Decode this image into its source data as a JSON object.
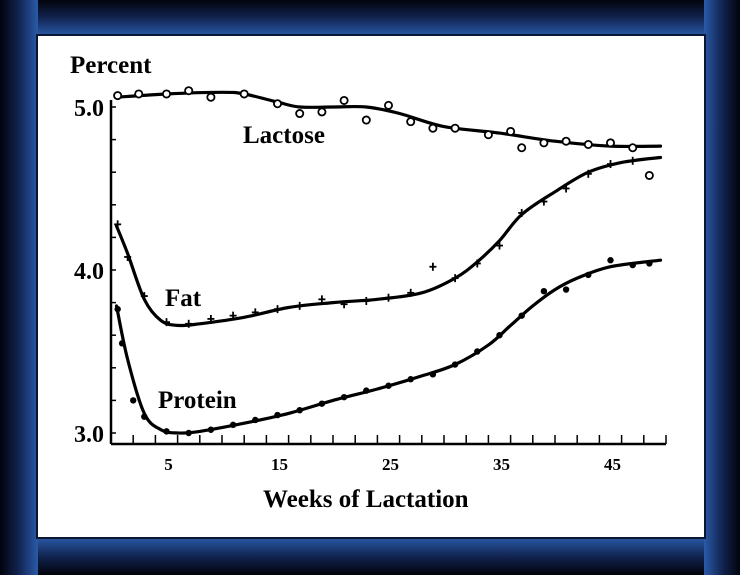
{
  "chart_data": {
    "type": "line",
    "title": "",
    "ylabel": "Percent",
    "xlabel": "Weeks of Lactation",
    "xlim": [
      0,
      50
    ],
    "ylim": [
      2.95,
      5.1
    ],
    "y_ticks": [
      "3.0",
      "4.0",
      "5.0"
    ],
    "x_ticks": [
      "5",
      "15",
      "25",
      "35",
      "45"
    ],
    "grid": false,
    "series": [
      {
        "name": "Lactose",
        "marker": "circle-open",
        "curve": [
          [
            0.5,
            5.06
          ],
          [
            5,
            5.08
          ],
          [
            10,
            5.09
          ],
          [
            12,
            5.08
          ],
          [
            15,
            5.03
          ],
          [
            17,
            5.0
          ],
          [
            20,
            5.0
          ],
          [
            23,
            5.0
          ],
          [
            26,
            4.96
          ],
          [
            30,
            4.88
          ],
          [
            35,
            4.84
          ],
          [
            40,
            4.79
          ],
          [
            45,
            4.76
          ],
          [
            49.5,
            4.76
          ]
        ],
        "points": [
          [
            0.6,
            5.07
          ],
          [
            2.5,
            5.08
          ],
          [
            5,
            5.08
          ],
          [
            7,
            5.1
          ],
          [
            9,
            5.06
          ],
          [
            12,
            5.08
          ],
          [
            15,
            5.02
          ],
          [
            17,
            4.96
          ],
          [
            19,
            4.97
          ],
          [
            21,
            5.04
          ],
          [
            23,
            4.92
          ],
          [
            25,
            5.01
          ],
          [
            27,
            4.91
          ],
          [
            29,
            4.87
          ],
          [
            31,
            4.87
          ],
          [
            34,
            4.83
          ],
          [
            36,
            4.85
          ],
          [
            37,
            4.75
          ],
          [
            39,
            4.78
          ],
          [
            41,
            4.79
          ],
          [
            43,
            4.77
          ],
          [
            45,
            4.78
          ],
          [
            47,
            4.75
          ],
          [
            48.5,
            4.58
          ]
        ]
      },
      {
        "name": "Fat",
        "marker": "plus",
        "curve": [
          [
            0.5,
            4.27
          ],
          [
            1.5,
            4.1
          ],
          [
            3,
            3.82
          ],
          [
            4.5,
            3.69
          ],
          [
            6,
            3.66
          ],
          [
            8,
            3.67
          ],
          [
            12,
            3.71
          ],
          [
            16,
            3.77
          ],
          [
            20,
            3.8
          ],
          [
            24,
            3.82
          ],
          [
            28,
            3.86
          ],
          [
            31,
            3.95
          ],
          [
            33,
            4.05
          ],
          [
            35,
            4.18
          ],
          [
            37,
            4.34
          ],
          [
            40,
            4.48
          ],
          [
            43,
            4.6
          ],
          [
            46,
            4.66
          ],
          [
            49.5,
            4.69
          ]
        ],
        "points": [
          [
            0.6,
            4.28
          ],
          [
            1.5,
            4.08
          ],
          [
            3,
            3.84
          ],
          [
            5,
            3.68
          ],
          [
            7,
            3.67
          ],
          [
            9,
            3.7
          ],
          [
            11,
            3.72
          ],
          [
            13,
            3.74
          ],
          [
            15,
            3.76
          ],
          [
            17,
            3.78
          ],
          [
            19,
            3.82
          ],
          [
            21,
            3.79
          ],
          [
            23,
            3.81
          ],
          [
            25,
            3.83
          ],
          [
            27,
            3.86
          ],
          [
            29,
            4.02
          ],
          [
            31,
            3.95
          ],
          [
            33,
            4.04
          ],
          [
            35,
            4.15
          ],
          [
            37,
            4.35
          ],
          [
            39,
            4.42
          ],
          [
            41,
            4.5
          ],
          [
            43,
            4.59
          ],
          [
            45,
            4.65
          ],
          [
            47,
            4.67
          ]
        ]
      },
      {
        "name": "Protein",
        "marker": "dot",
        "curve": [
          [
            0.5,
            3.78
          ],
          [
            1.5,
            3.45
          ],
          [
            3,
            3.12
          ],
          [
            4.5,
            3.02
          ],
          [
            6,
            3.0
          ],
          [
            8,
            3.01
          ],
          [
            12,
            3.06
          ],
          [
            16,
            3.12
          ],
          [
            20,
            3.2
          ],
          [
            24,
            3.27
          ],
          [
            28,
            3.35
          ],
          [
            31,
            3.42
          ],
          [
            34,
            3.54
          ],
          [
            36,
            3.66
          ],
          [
            38,
            3.78
          ],
          [
            40,
            3.88
          ],
          [
            42,
            3.95
          ],
          [
            45,
            4.02
          ],
          [
            49.5,
            4.06
          ]
        ],
        "points": [
          [
            0.6,
            3.76
          ],
          [
            1,
            3.55
          ],
          [
            2,
            3.2
          ],
          [
            3,
            3.1
          ],
          [
            5,
            3.01
          ],
          [
            7,
            3.0
          ],
          [
            9,
            3.02
          ],
          [
            11,
            3.05
          ],
          [
            13,
            3.08
          ],
          [
            15,
            3.11
          ],
          [
            17,
            3.14
          ],
          [
            19,
            3.18
          ],
          [
            21,
            3.22
          ],
          [
            23,
            3.26
          ],
          [
            25,
            3.29
          ],
          [
            27,
            3.33
          ],
          [
            29,
            3.36
          ],
          [
            31,
            3.42
          ],
          [
            33,
            3.5
          ],
          [
            35,
            3.6
          ],
          [
            37,
            3.72
          ],
          [
            39,
            3.87
          ],
          [
            41,
            3.88
          ],
          [
            43,
            3.97
          ],
          [
            45,
            4.06
          ],
          [
            47,
            4.03
          ],
          [
            48.5,
            4.04
          ]
        ]
      }
    ]
  }
}
